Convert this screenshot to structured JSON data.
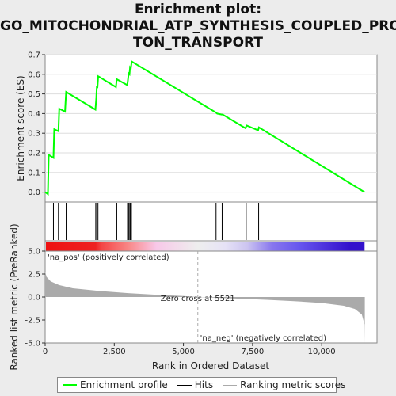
{
  "title_lines": [
    "Enrichment plot:",
    "GO_MITOCHONDRIAL_ATP_SYNTHESIS_COUPLED_PRO",
    "TON_TRANSPORT"
  ],
  "colors": {
    "es_line": "#00ff00",
    "hits": "#000000",
    "metric_fill": "#aaaaaa",
    "zero_cross": "#aaaaaa"
  },
  "legend": {
    "items": [
      {
        "label": "Enrichment profile",
        "color": "#00ff00"
      },
      {
        "label": "Hits",
        "color": "#000000"
      },
      {
        "label": "Ranking metric scores",
        "color": "#aaaaaa"
      }
    ]
  },
  "chart_data": {
    "type": "line",
    "xlabel": "Rank in Ordered Dataset",
    "x_range": [
      0,
      12000
    ],
    "x_ticks": [
      {
        "v": 0,
        "label": "0"
      },
      {
        "v": 2500,
        "label": "2,500"
      },
      {
        "v": 5000,
        "label": "5,000"
      },
      {
        "v": 7500,
        "label": "7,500"
      },
      {
        "v": 10000,
        "label": "10,000"
      }
    ],
    "es": {
      "ylabel": "Enrichment score (ES)",
      "ylim": [
        -0.05,
        0.7
      ],
      "y_ticks": [
        {
          "v": 0.0,
          "label": "0.0"
        },
        {
          "v": 0.1,
          "label": "0.1"
        },
        {
          "v": 0.2,
          "label": "0.2"
        },
        {
          "v": 0.3,
          "label": "0.3"
        },
        {
          "v": 0.4,
          "label": "0.4"
        },
        {
          "v": 0.5,
          "label": "0.5"
        },
        {
          "v": 0.6,
          "label": "0.6"
        },
        {
          "v": 0.7,
          "label": "0.7"
        }
      ],
      "points": [
        [
          0,
          0.0
        ],
        [
          100,
          -0.01
        ],
        [
          130,
          0.19
        ],
        [
          300,
          0.175
        ],
        [
          330,
          0.32
        ],
        [
          480,
          0.31
        ],
        [
          510,
          0.425
        ],
        [
          720,
          0.41
        ],
        [
          760,
          0.51
        ],
        [
          1820,
          0.42
        ],
        [
          1850,
          0.48
        ],
        [
          1870,
          0.54
        ],
        [
          1890,
          0.53
        ],
        [
          1920,
          0.59
        ],
        [
          2560,
          0.535
        ],
        [
          2590,
          0.575
        ],
        [
          2970,
          0.545
        ],
        [
          3000,
          0.58
        ],
        [
          3020,
          0.605
        ],
        [
          3050,
          0.6
        ],
        [
          3070,
          0.635
        ],
        [
          3100,
          0.63
        ],
        [
          3130,
          0.665
        ],
        [
          6180,
          0.405
        ],
        [
          6220,
          0.4
        ],
        [
          6380,
          0.395
        ],
        [
          6420,
          0.395
        ],
        [
          7250,
          0.325
        ],
        [
          7280,
          0.34
        ],
        [
          7700,
          0.315
        ],
        [
          7730,
          0.33
        ],
        [
          11550,
          0.0
        ]
      ]
    },
    "hits": [
      100,
      300,
      480,
      760,
      1830,
      1870,
      1910,
      2590,
      2980,
      3010,
      3040,
      3080,
      3120,
      6180,
      6400,
      7270,
      7720
    ],
    "metric": {
      "ylabel": "Ranked list metric (PreRanked)",
      "ylim": [
        -5.0,
        5.0
      ],
      "y_ticks": [
        {
          "v": 5.0,
          "label": "5.0"
        },
        {
          "v": 2.5,
          "label": "2.5"
        },
        {
          "v": 0.0,
          "label": "0.0"
        },
        {
          "v": -2.5,
          "label": "-2.5"
        },
        {
          "v": -5.0,
          "label": "-5.0"
        }
      ],
      "profile": [
        [
          0,
          2.8
        ],
        [
          50,
          2.2
        ],
        [
          200,
          1.7
        ],
        [
          500,
          1.3
        ],
        [
          1000,
          0.95
        ],
        [
          2000,
          0.65
        ],
        [
          3000,
          0.42
        ],
        [
          4000,
          0.25
        ],
        [
          5000,
          0.1
        ],
        [
          5521,
          0.0
        ],
        [
          6500,
          -0.12
        ],
        [
          8000,
          -0.3
        ],
        [
          9000,
          -0.45
        ],
        [
          10000,
          -0.65
        ],
        [
          10800,
          -0.95
        ],
        [
          11200,
          -1.3
        ],
        [
          11450,
          -1.9
        ],
        [
          11550,
          -3.0
        ],
        [
          11560,
          -5.0
        ]
      ],
      "zero_cross_rank": 5521,
      "zero_cross_label": "Zero cross at 5521",
      "pos_label": "'na_pos' (positively correlated)",
      "neg_label": "'na_neg' (negatively correlated)"
    },
    "heatmap_band": {
      "stops": [
        [
          0,
          "#ee1111"
        ],
        [
          1800,
          "#ee2222"
        ],
        [
          2000,
          "#f44444"
        ],
        [
          3000,
          "#f88888"
        ],
        [
          4000,
          "#f8c8e8"
        ],
        [
          5500,
          "#eeeeee"
        ],
        [
          6500,
          "#e6e2f6"
        ],
        [
          7300,
          "#ccc4f0"
        ],
        [
          8200,
          "#8877ee"
        ],
        [
          9200,
          "#6655ee"
        ],
        [
          11000,
          "#3311cc"
        ],
        [
          11550,
          "#3311cc"
        ]
      ]
    }
  }
}
